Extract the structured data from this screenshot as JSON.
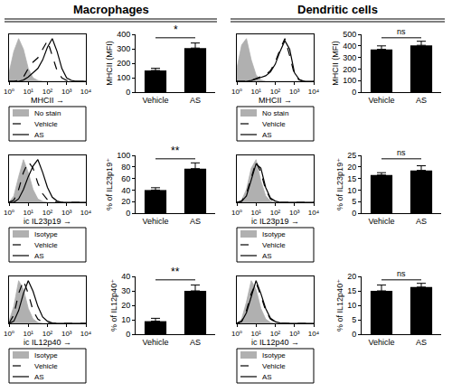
{
  "column_titles": [
    "Macrophages",
    "Dendritic cells"
  ],
  "chart_data": [
    {
      "type": "line",
      "xlabel": "MHCII →",
      "log": "x",
      "tick_labels": "x",
      "legend": "bottom",
      "grid": false,
      "x": [
        1,
        1.778,
        3.162,
        5.623,
        10,
        17.78,
        31.62,
        56.23,
        100,
        177.8,
        316.2,
        562.3,
        1000,
        1778,
        3162,
        5623,
        10000
      ],
      "xlim": [
        1,
        10000
      ],
      "xticks": [
        {
          "value": 1,
          "label": "10⁰"
        },
        {
          "value": 10,
          "label": "10¹"
        },
        {
          "value": 100,
          "label": "10²"
        },
        {
          "value": 1000,
          "label": "10³"
        },
        {
          "value": 10000,
          "label": "10⁴"
        }
      ],
      "ylim": [
        0,
        110
      ],
      "series": [
        {
          "name": "No stain",
          "type": "area",
          "color": "#b0b0b0",
          "line_style": "solid",
          "values": [
            20,
            70,
            100,
            75,
            30,
            8,
            2,
            0,
            0,
            0,
            0,
            0,
            0,
            0,
            0,
            0,
            0
          ]
        },
        {
          "name": "Vehicle",
          "type": "line",
          "color": "#000000",
          "line_style": "dashed",
          "values": [
            0,
            0,
            2,
            10,
            30,
            45,
            55,
            75,
            95,
            60,
            25,
            8,
            2,
            0,
            0,
            0,
            0
          ]
        },
        {
          "name": "AS",
          "type": "line",
          "color": "#000000",
          "line_style": "solid",
          "values": [
            0,
            0,
            0,
            3,
            10,
            20,
            30,
            50,
            80,
            100,
            70,
            30,
            8,
            2,
            0,
            0,
            0
          ]
        }
      ]
    },
    {
      "type": "bar",
      "ylabel": "MHCII (MFI)",
      "categories": [
        "Vehicle",
        "AS"
      ],
      "values": [
        150,
        305
      ],
      "errors": [
        15,
        35
      ],
      "color": "#000000",
      "ylim": [
        0,
        400
      ],
      "yticks": [
        0,
        100,
        200,
        300,
        400
      ],
      "grid": false,
      "annotations": [
        {
          "text": "*"
        }
      ]
    },
    {
      "type": "line",
      "xlabel": "ic IL23p19 →",
      "log": "x",
      "tick_labels": "x",
      "legend": "bottom",
      "grid": false,
      "x": [
        1,
        1.778,
        3.162,
        5.623,
        10,
        17.78,
        31.62,
        56.23,
        100,
        177.8,
        316.2,
        562.3,
        1000,
        1778,
        3162,
        5623,
        10000
      ],
      "xlim": [
        1,
        10000
      ],
      "xticks": [
        {
          "value": 1,
          "label": "10⁰"
        },
        {
          "value": 10,
          "label": "10¹"
        },
        {
          "value": 100,
          "label": "10²"
        },
        {
          "value": 1000,
          "label": "10³"
        },
        {
          "value": 10000,
          "label": "10⁴"
        }
      ],
      "ylim": [
        0,
        110
      ],
      "series": [
        {
          "name": "Isotype",
          "type": "area",
          "color": "#b0b0b0",
          "line_style": "solid",
          "values": [
            0,
            15,
            60,
            100,
            70,
            30,
            8,
            2,
            0,
            0,
            0,
            0,
            0,
            0,
            0,
            0,
            0
          ]
        },
        {
          "name": "Vehicle",
          "type": "line",
          "color": "#000000",
          "line_style": "dashed",
          "values": [
            0,
            5,
            30,
            70,
            95,
            80,
            45,
            20,
            6,
            2,
            0,
            0,
            0,
            0,
            0,
            0,
            0
          ]
        },
        {
          "name": "AS",
          "type": "line",
          "color": "#000000",
          "line_style": "solid",
          "values": [
            0,
            0,
            8,
            30,
            60,
            85,
            100,
            70,
            35,
            12,
            3,
            0,
            0,
            0,
            0,
            0,
            0
          ]
        }
      ]
    },
    {
      "type": "bar",
      "ylabel": "% of IL23p19⁺",
      "categories": [
        "Vehicle",
        "AS"
      ],
      "values": [
        40,
        77
      ],
      "errors": [
        4,
        10
      ],
      "color": "#000000",
      "ylim": [
        0,
        100
      ],
      "yticks": [
        0,
        20,
        40,
        60,
        80,
        100
      ],
      "grid": false,
      "annotations": [
        {
          "text": "**"
        }
      ]
    },
    {
      "type": "line",
      "xlabel": "ic IL12p40 →",
      "log": "x",
      "tick_labels": "x",
      "legend": "bottom",
      "grid": false,
      "x": [
        1,
        1.778,
        3.162,
        5.623,
        10,
        17.78,
        31.62,
        56.23,
        100,
        177.8,
        316.2,
        562.3,
        1000,
        1778,
        3162,
        5623,
        10000
      ],
      "xlim": [
        1,
        10000
      ],
      "xticks": [
        {
          "value": 1,
          "label": "10⁰"
        },
        {
          "value": 10,
          "label": "10¹"
        },
        {
          "value": 100,
          "label": "10²"
        },
        {
          "value": 1000,
          "label": "10³"
        },
        {
          "value": 10000,
          "label": "10⁴"
        }
      ],
      "ylim": [
        0,
        110
      ],
      "series": [
        {
          "name": "Isotype",
          "type": "area",
          "color": "#b0b0b0",
          "line_style": "solid",
          "values": [
            5,
            40,
            100,
            80,
            35,
            10,
            2,
            0,
            0,
            0,
            0,
            0,
            0,
            0,
            0,
            0,
            0
          ]
        },
        {
          "name": "Vehicle",
          "type": "line",
          "color": "#000000",
          "line_style": "dashed",
          "values": [
            0,
            20,
            70,
            100,
            70,
            30,
            10,
            3,
            0,
            0,
            0,
            0,
            0,
            0,
            0,
            0,
            0
          ]
        },
        {
          "name": "AS",
          "type": "line",
          "color": "#000000",
          "line_style": "solid",
          "values": [
            0,
            5,
            30,
            70,
            100,
            75,
            40,
            15,
            5,
            1,
            0,
            0,
            0,
            0,
            0,
            0,
            0
          ]
        }
      ]
    },
    {
      "type": "bar",
      "ylabel": "% of IL12p40⁺",
      "categories": [
        "Vehicle",
        "AS"
      ],
      "values": [
        9,
        30
      ],
      "errors": [
        2,
        4
      ],
      "color": "#000000",
      "ylim": [
        0,
        40
      ],
      "yticks": [
        0,
        10,
        20,
        30,
        40
      ],
      "grid": false,
      "annotations": [
        {
          "text": "**"
        }
      ]
    },
    {
      "type": "line",
      "xlabel": "MHCII →",
      "log": "x",
      "tick_labels": "x",
      "legend": "bottom",
      "grid": false,
      "x": [
        1,
        1.778,
        3.162,
        5.623,
        10,
        17.78,
        31.62,
        56.23,
        100,
        177.8,
        316.2,
        562.3,
        1000,
        1778,
        3162,
        5623,
        10000
      ],
      "xlim": [
        1,
        10000
      ],
      "xticks": [
        {
          "value": 1,
          "label": "10⁰"
        },
        {
          "value": 10,
          "label": "10¹"
        },
        {
          "value": 100,
          "label": "10²"
        },
        {
          "value": 1000,
          "label": "10³"
        },
        {
          "value": 10000,
          "label": "10⁴"
        }
      ],
      "ylim": [
        0,
        110
      ],
      "series": [
        {
          "name": "No stain",
          "type": "area",
          "color": "#b0b0b0",
          "line_style": "solid",
          "values": [
            30,
            85,
            100,
            50,
            15,
            3,
            0,
            0,
            0,
            0,
            0,
            0,
            0,
            0,
            0,
            0,
            0
          ]
        },
        {
          "name": "Vehicle",
          "type": "line",
          "color": "#000000",
          "line_style": "dashed",
          "values": [
            0,
            0,
            0,
            2,
            6,
            10,
            15,
            25,
            45,
            75,
            100,
            60,
            15,
            3,
            0,
            0,
            0
          ]
        },
        {
          "name": "AS",
          "type": "line",
          "color": "#000000",
          "line_style": "solid",
          "values": [
            0,
            0,
            0,
            2,
            5,
            9,
            13,
            22,
            40,
            70,
            95,
            75,
            20,
            4,
            0,
            0,
            0
          ]
        }
      ]
    },
    {
      "type": "bar",
      "ylabel": "MHCII (MFI)",
      "categories": [
        "Vehicle",
        "AS"
      ],
      "values": [
        370,
        405
      ],
      "errors": [
        30,
        35
      ],
      "color": "#000000",
      "ylim": [
        0,
        500
      ],
      "yticks": [
        0,
        100,
        200,
        300,
        400,
        500
      ],
      "grid": false,
      "annotations": [
        {
          "text": "ns"
        }
      ]
    },
    {
      "type": "line",
      "xlabel": "ic IL23p19 →",
      "log": "x",
      "tick_labels": "x",
      "legend": "bottom",
      "grid": false,
      "x": [
        1,
        1.778,
        3.162,
        5.623,
        10,
        17.78,
        31.62,
        56.23,
        100,
        177.8,
        316.2,
        562.3,
        1000,
        1778,
        3162,
        5623,
        10000
      ],
      "xlim": [
        1,
        10000
      ],
      "xticks": [
        {
          "value": 1,
          "label": "10⁰"
        },
        {
          "value": 10,
          "label": "10¹"
        },
        {
          "value": 100,
          "label": "10²"
        },
        {
          "value": 1000,
          "label": "10³"
        },
        {
          "value": 10000,
          "label": "10⁴"
        }
      ],
      "ylim": [
        0,
        110
      ],
      "series": [
        {
          "name": "Isotype",
          "type": "area",
          "color": "#b0b0b0",
          "line_style": "solid",
          "values": [
            0,
            5,
            30,
            80,
            100,
            50,
            15,
            3,
            0,
            0,
            0,
            0,
            0,
            0,
            0,
            0,
            0
          ]
        },
        {
          "name": "Vehicle",
          "type": "line",
          "color": "#000000",
          "line_style": "dashed",
          "values": [
            0,
            3,
            20,
            55,
            95,
            70,
            30,
            8,
            2,
            0,
            0,
            0,
            0,
            0,
            0,
            0,
            0
          ]
        },
        {
          "name": "AS",
          "type": "line",
          "color": "#000000",
          "line_style": "solid",
          "values": [
            0,
            2,
            15,
            50,
            90,
            80,
            35,
            10,
            3,
            0,
            0,
            0,
            0,
            0,
            0,
            0,
            0
          ]
        }
      ]
    },
    {
      "type": "bar",
      "ylabel": "% of IL23p19⁺",
      "categories": [
        "Vehicle",
        "AS"
      ],
      "values": [
        16.5,
        18.5
      ],
      "errors": [
        1,
        2
      ],
      "color": "#000000",
      "ylim": [
        0,
        25
      ],
      "yticks": [
        0,
        5,
        10,
        15,
        20,
        25
      ],
      "grid": false,
      "annotations": [
        {
          "text": "ns"
        }
      ]
    },
    {
      "type": "line",
      "xlabel": "ic IL12p40 →",
      "log": "x",
      "tick_labels": "x",
      "legend": "bottom",
      "grid": false,
      "x": [
        1,
        1.778,
        3.162,
        5.623,
        10,
        17.78,
        31.62,
        56.23,
        100,
        177.8,
        316.2,
        562.3,
        1000,
        1778,
        3162,
        5623,
        10000
      ],
      "xlim": [
        1,
        10000
      ],
      "xticks": [
        {
          "value": 1,
          "label": "10⁰"
        },
        {
          "value": 10,
          "label": "10¹"
        },
        {
          "value": 100,
          "label": "10²"
        },
        {
          "value": 1000,
          "label": "10³"
        },
        {
          "value": 10000,
          "label": "10⁴"
        }
      ],
      "ylim": [
        0,
        110
      ],
      "series": [
        {
          "name": "Isotype",
          "type": "area",
          "color": "#b0b0b0",
          "line_style": "solid",
          "values": [
            0,
            10,
            50,
            100,
            80,
            35,
            10,
            2,
            0,
            0,
            0,
            0,
            0,
            0,
            0,
            0,
            0
          ]
        },
        {
          "name": "Vehicle",
          "type": "line",
          "color": "#000000",
          "line_style": "dashed",
          "values": [
            0,
            5,
            30,
            70,
            95,
            65,
            30,
            10,
            3,
            0,
            0,
            0,
            0,
            0,
            0,
            0,
            0
          ]
        },
        {
          "name": "AS",
          "type": "line",
          "color": "#000000",
          "line_style": "solid",
          "values": [
            0,
            4,
            25,
            65,
            100,
            70,
            35,
            12,
            4,
            1,
            0,
            0,
            0,
            0,
            0,
            0,
            0
          ]
        }
      ]
    },
    {
      "type": "bar",
      "ylabel": "% of IL12p40⁺",
      "categories": [
        "Vehicle",
        "AS"
      ],
      "values": [
        15,
        16.3
      ],
      "errors": [
        2,
        1.3
      ],
      "color": "#000000",
      "ylim": [
        0,
        20
      ],
      "yticks": [
        0,
        5,
        10,
        15,
        20
      ],
      "grid": false,
      "annotations": [
        {
          "text": "ns"
        }
      ]
    }
  ]
}
